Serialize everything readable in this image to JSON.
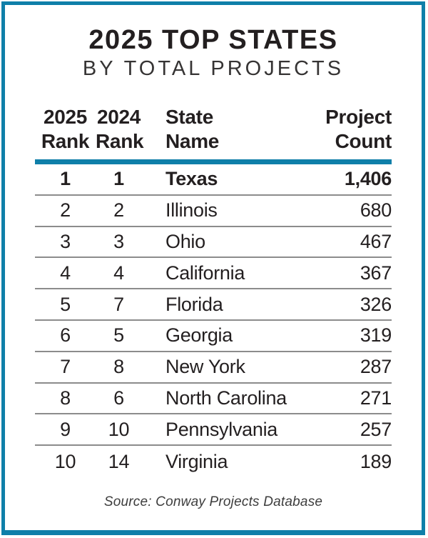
{
  "colors": {
    "accent": "#0f7fa9",
    "divider": "#8c8c8c",
    "text": "#231f20",
    "source": "#3d3d3d"
  },
  "title": {
    "line1": "2025 TOP STATES",
    "line2": "BY TOTAL PROJECTS"
  },
  "table": {
    "headers": [
      {
        "line1": "2025",
        "line2": "Rank"
      },
      {
        "line1": "2024",
        "line2": "Rank"
      },
      {
        "line1": "State",
        "line2": "Name"
      },
      {
        "line1": "Project",
        "line2": "Count"
      }
    ],
    "rows": [
      {
        "rank2025": "1",
        "rank2024": "1",
        "state": "Texas",
        "count": "1,406",
        "bold": true
      },
      {
        "rank2025": "2",
        "rank2024": "2",
        "state": "Illinois",
        "count": "680",
        "bold": false
      },
      {
        "rank2025": "3",
        "rank2024": "3",
        "state": "Ohio",
        "count": "467",
        "bold": false
      },
      {
        "rank2025": "4",
        "rank2024": "4",
        "state": "California",
        "count": "367",
        "bold": false
      },
      {
        "rank2025": "5",
        "rank2024": "7",
        "state": "Florida",
        "count": "326",
        "bold": false
      },
      {
        "rank2025": "6",
        "rank2024": "5",
        "state": "Georgia",
        "count": "319",
        "bold": false
      },
      {
        "rank2025": "7",
        "rank2024": "8",
        "state": "New York",
        "count": "287",
        "bold": false
      },
      {
        "rank2025": "8",
        "rank2024": "6",
        "state": "North Carolina",
        "count": "271",
        "bold": false
      },
      {
        "rank2025": "9",
        "rank2024": "10",
        "state": "Pennsylvania",
        "count": "257",
        "bold": false
      },
      {
        "rank2025": "10",
        "rank2024": "14",
        "state": "Virginia",
        "count": "189",
        "bold": false
      }
    ]
  },
  "source": "Source: Conway Projects Database",
  "chart_data": {
    "type": "table",
    "title": "2025 TOP STATES BY TOTAL PROJECTS",
    "columns": [
      "2025 Rank",
      "2024 Rank",
      "State Name",
      "Project Count"
    ],
    "rows": [
      [
        1,
        1,
        "Texas",
        1406
      ],
      [
        2,
        2,
        "Illinois",
        680
      ],
      [
        3,
        3,
        "Ohio",
        467
      ],
      [
        4,
        4,
        "California",
        367
      ],
      [
        5,
        7,
        "Florida",
        326
      ],
      [
        6,
        5,
        "Georgia",
        319
      ],
      [
        7,
        8,
        "New York",
        287
      ],
      [
        8,
        6,
        "North Carolina",
        271
      ],
      [
        9,
        10,
        "Pennsylvania",
        257
      ],
      [
        10,
        14,
        "Virginia",
        189
      ]
    ],
    "source": "Source: Conway Projects Database"
  }
}
